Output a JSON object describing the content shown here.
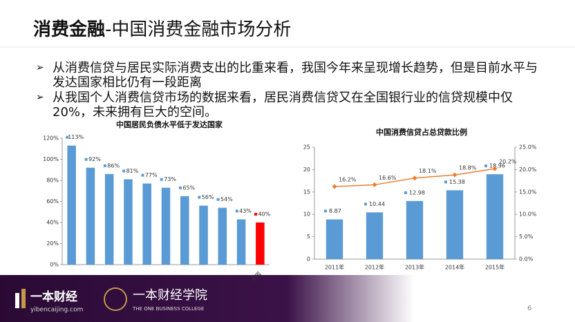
{
  "header": {
    "title_bold": "消费金融",
    "title_rest": "-中国消费金融市场分析"
  },
  "bullets": [
    "从消费信贷与居民实际消费支出的比重来看，我国今年来呈现增长趋势，但是目前水平与发达国家相比仍有一段距离",
    "从我国个人消费信贷市场的数据来看，居民消费信贷又在全国银行业的信贷规模中仅20%，未来拥有巨大的空间。"
  ],
  "chart_data": [
    {
      "type": "bar",
      "title": "中国居民负债水平低于发达国家",
      "categories": [
        null,
        null,
        null,
        null,
        null,
        null,
        null,
        null,
        null,
        null,
        "中国"
      ],
      "values": [
        113,
        92,
        86,
        81,
        77,
        73,
        65,
        56,
        54,
        43,
        40
      ],
      "value_labels": [
        "113%",
        "92%",
        "86%",
        "81%",
        "77%",
        "73%",
        "65%",
        "56%",
        "54%",
        "43%",
        "40%"
      ],
      "colors": [
        "#5b9bd5",
        "#5b9bd5",
        "#5b9bd5",
        "#5b9bd5",
        "#5b9bd5",
        "#5b9bd5",
        "#5b9bd5",
        "#5b9bd5",
        "#5b9bd5",
        "#5b9bd5",
        "#ff0000"
      ],
      "ylim": [
        0,
        120
      ],
      "yticks": [
        {
          "value": 0,
          "label": "0%"
        },
        {
          "value": 20,
          "label": "20%"
        },
        {
          "value": 40,
          "label": "40%"
        },
        {
          "value": 60,
          "label": "60%"
        },
        {
          "value": 80,
          "label": "80%"
        },
        {
          "value": 100,
          "label": "100%"
        },
        {
          "value": 120,
          "label": "120%"
        }
      ]
    },
    {
      "type": "bar_line",
      "title": "中国消费信贷占总贷款比例",
      "categories": [
        "2011年",
        "2012年",
        "2013年",
        "2014年",
        "2015年"
      ],
      "series": [
        {
          "type": "bar",
          "color": "#5b9bd5",
          "values": [
            8.87,
            10.44,
            12.98,
            15.38,
            18.96
          ]
        },
        {
          "type": "line",
          "axis": "y2",
          "color": "#ed7d31",
          "values": [
            16.2,
            16.6,
            18.1,
            18.8,
            20.2
          ],
          "value_labels": [
            "16.2%",
            "16.6%",
            "18.1%",
            "18.8%",
            "20.2%"
          ]
        }
      ],
      "ylim": [
        0,
        25
      ],
      "yticks": [
        0,
        5,
        10,
        15,
        20,
        25
      ],
      "y2lim": [
        0,
        25
      ],
      "y2ticks": [
        {
          "value": 0,
          "label": "0.0%"
        },
        {
          "value": 5,
          "label": "5.0%"
        },
        {
          "value": 10,
          "label": "10.0%"
        },
        {
          "value": 15,
          "label": "15.0%"
        },
        {
          "value": 20,
          "label": "20.0%"
        },
        {
          "value": 25,
          "label": "25.0%"
        }
      ]
    }
  ],
  "footer": {
    "logo": "一本财经",
    "site": "yibencaijing.com",
    "college": "一本财经学院",
    "college_en": "THE ONE BUSINESS COLLEGE",
    "page": "6"
  }
}
